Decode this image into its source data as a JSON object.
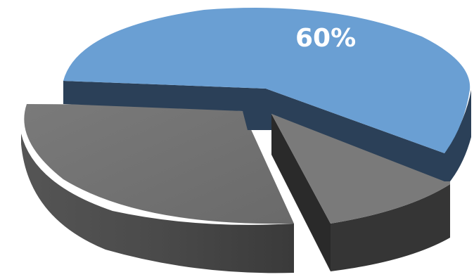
{
  "chart_data": {
    "type": "pie",
    "style": "3d-exploded",
    "title": "",
    "legend": "none",
    "series": [
      {
        "values": [
          60,
          12,
          28
        ],
        "colors": [
          "#6a9fd3",
          "#777777",
          "#6e6e6e"
        ],
        "side_colors": [
          "#2b4058",
          "#333333",
          "#454545"
        ]
      }
    ],
    "data_labels": [
      {
        "slice": 0,
        "text": "60%"
      }
    ]
  }
}
